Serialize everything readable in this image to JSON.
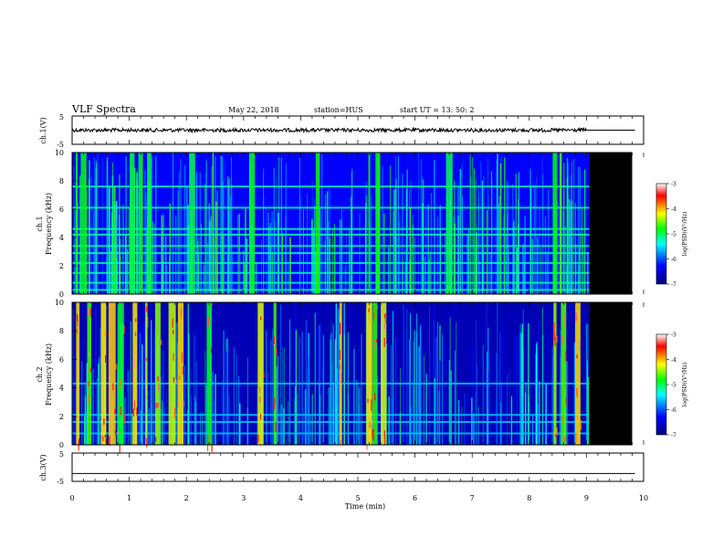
{
  "header": {
    "title": "VLF Spectra",
    "date": "May 22, 2018",
    "station": "station=HUS",
    "start_time": "start  UT =   13: 50: 2"
  },
  "chart_data": [
    {
      "type": "line",
      "panel": "ch1-waveform",
      "ylabel": "ch.1(V)",
      "ylim": [
        -5,
        5
      ],
      "yticks": [
        "5",
        "-5"
      ],
      "xlim": [
        0,
        10
      ],
      "x": [
        0,
        9,
        9.85
      ],
      "values": [
        0,
        0,
        0
      ],
      "note_color": "#000000"
    },
    {
      "type": "heatmap",
      "panel": "ch1-spectrogram",
      "ylabel_lines": [
        "ch.1",
        "Frequency (kHz)"
      ],
      "ylim": [
        0,
        10
      ],
      "yticks": [
        "0",
        "2",
        "4",
        "6",
        "8",
        "10"
      ],
      "xlim": [
        0,
        10
      ],
      "data_end_min": 9.05,
      "background_log_psd": -6.3,
      "band_freqs_khz": [
        0.3,
        0.8,
        1.5,
        2.2,
        2.9,
        3.4,
        4.2,
        4.6,
        6.1,
        7.6
      ],
      "bursts_min": [
        0.08,
        0.2,
        1.05,
        1.2,
        1.35,
        2.1,
        3.15,
        4.3,
        5.2,
        5.35,
        6.6,
        8.45,
        8.55
      ]
    },
    {
      "type": "heatmap",
      "panel": "ch2-spectrogram",
      "ylabel_lines": [
        "ch.2",
        "Frequency (kHz)"
      ],
      "ylim": [
        0,
        10
      ],
      "yticks": [
        "0",
        "2",
        "4",
        "6",
        "8",
        "10"
      ],
      "xlim": [
        0,
        10
      ],
      "data_end_min": 9.05,
      "background_log_psd": -6.7,
      "band_freqs_khz": [
        0.8,
        1.6,
        2.1,
        4.3
      ],
      "bursts_min": [
        0.1,
        0.3,
        0.55,
        0.7,
        0.85,
        1.1,
        1.3,
        1.5,
        1.75,
        1.9,
        2.4,
        3.3,
        3.55,
        4.7,
        5.2,
        5.3,
        5.45,
        8.45,
        8.6,
        8.85
      ]
    },
    {
      "type": "line",
      "panel": "ch3-waveform",
      "ylabel": "ch.3(V)",
      "ylim": [
        -5,
        5
      ],
      "yticks": [
        "5",
        "-5"
      ],
      "xlim": [
        0,
        10
      ],
      "x": [
        0,
        9.85
      ],
      "values": [
        -2.2,
        -2.2
      ]
    }
  ],
  "x_axis": {
    "label": "Time  (min)",
    "ticks": [
      "0",
      "1",
      "2",
      "3",
      "4",
      "5",
      "6",
      "7",
      "8",
      "9",
      "10"
    ]
  },
  "colorbars": [
    {
      "label": "log(PSD)(V²/Hz)",
      "ticks": [
        "-3",
        "-4",
        "-5",
        "-6",
        "-7"
      ],
      "range": [
        -7,
        -3
      ],
      "colors": [
        "#00007f",
        "#0000ff",
        "#00ffff",
        "#00ff00",
        "#ffff00",
        "#ff0000",
        "#ffffff"
      ]
    },
    {
      "label": "log(PSD)(V²/Hz)",
      "ticks": [
        "-3",
        "-4",
        "-5",
        "-6",
        "-7"
      ],
      "range": [
        -7,
        -3
      ],
      "colors": [
        "#00007f",
        "#0000ff",
        "#00ffff",
        "#00ff00",
        "#ffff00",
        "#ff0000",
        "#ffffff"
      ]
    }
  ]
}
